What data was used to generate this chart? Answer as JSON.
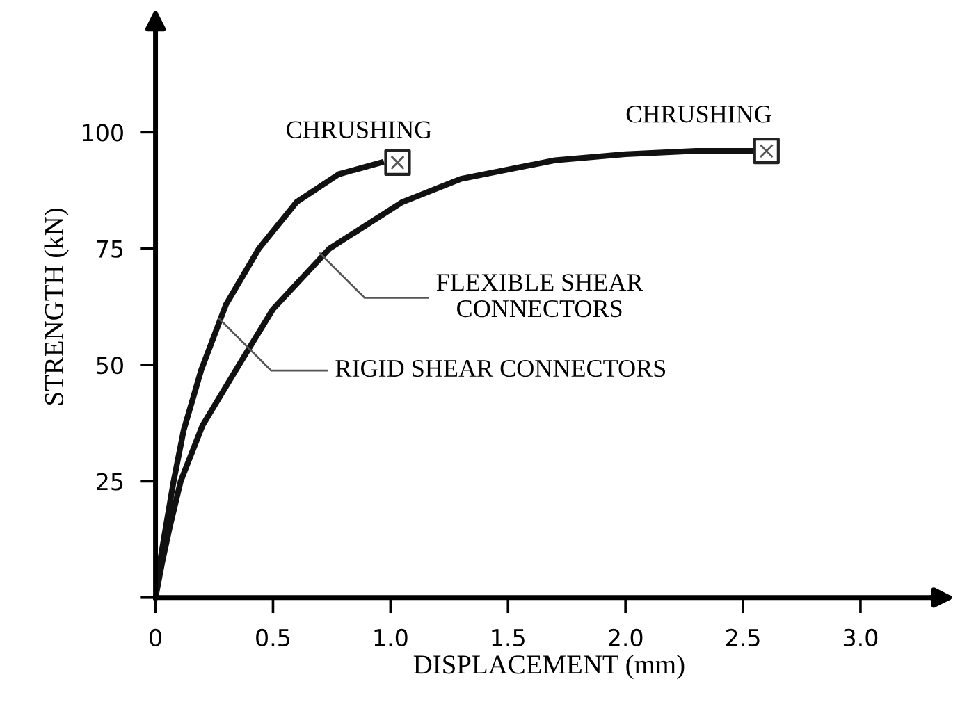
{
  "chart_data": {
    "type": "line",
    "xlabel": "DISPLACEMENT (mm)",
    "ylabel": "STRENGTH (kN)",
    "xlim": [
      0,
      3.35
    ],
    "ylim": [
      0,
      125
    ],
    "xticks": [
      0,
      0.5,
      {
        "value": 1.0,
        "label": "1.0"
      },
      1.5,
      {
        "value": 2.0,
        "label": "2.0"
      },
      2.5,
      {
        "value": 3.0,
        "label": "3.0"
      }
    ],
    "yticks": [
      {
        "value": 0,
        "label": null
      },
      25,
      50,
      75,
      100
    ],
    "grid": false,
    "marker": "none",
    "line_style": "solid",
    "series": [
      {
        "color": "#111111",
        "x": [
          0,
          0.02,
          0.05,
          0.077,
          0.12,
          0.195,
          0.3,
          0.44,
          0.6,
          0.78,
          0.96
        ],
        "values": [
          0,
          8,
          17,
          25,
          36,
          49,
          63,
          75,
          85,
          91,
          93.5
        ]
      },
      {
        "color": "#111111",
        "x": [
          0,
          0.03,
          0.06,
          0.107,
          0.2,
          0.355,
          0.5,
          0.74,
          1.05,
          1.3,
          1.7,
          2.0,
          2.3,
          2.53
        ],
        "values": [
          0,
          8,
          15,
          25,
          37,
          50,
          62,
          75,
          85,
          90,
          94,
          95.3,
          96,
          96
        ]
      },
      {
        "type": "scatter",
        "marker": "square",
        "color": "#ffffff",
        "x": [
          1.03,
          2.6
        ],
        "values": [
          93.5,
          96
        ]
      }
    ],
    "annotations": [
      {
        "text": "CHRUSHING",
        "x": 1.03,
        "y": 93.5
      },
      {
        "text": "CHRUSHING",
        "x": 2.6,
        "y": 96
      },
      {
        "text": "FLEXIBLE SHEAR\nCONNECTORS",
        "x": 0.7,
        "y": 74
      },
      {
        "text": "RIGID SHEAR CONNECTORS",
        "x": 0.27,
        "y": 60
      }
    ]
  }
}
